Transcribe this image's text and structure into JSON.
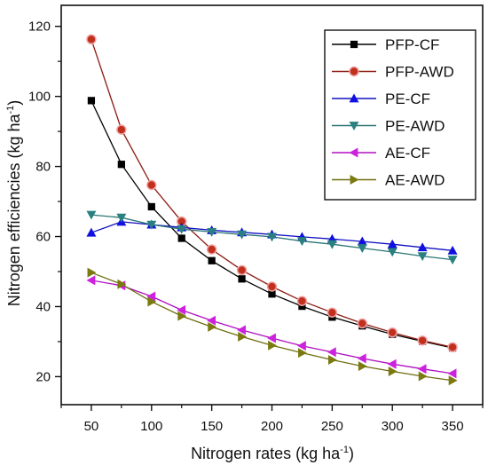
{
  "chart_data": {
    "type": "line",
    "title": "",
    "xlabel": "Nitrogen rates (kg ha",
    "xlabel_sup": "-1",
    "xlabel_suffix": ")",
    "ylabel": "Nitrogen efficiencies (kg ha",
    "ylabel_sup": "-1",
    "ylabel_suffix": ")",
    "xlim": [
      25,
      375
    ],
    "ylim": [
      12,
      126
    ],
    "x_ticks": [
      50,
      100,
      150,
      200,
      250,
      300,
      350
    ],
    "y_ticks": [
      20,
      40,
      60,
      80,
      100,
      120
    ],
    "grid": false,
    "legend_position": "top-right",
    "x": [
      50,
      75,
      100,
      125,
      150,
      175,
      200,
      225,
      250,
      275,
      300,
      325,
      350
    ],
    "series": [
      {
        "name": "PFP-CF",
        "marker": "square",
        "color": "#000000",
        "line_color": "#000000",
        "values": [
          98.8,
          80.6,
          68.5,
          59.5,
          53.1,
          47.9,
          43.6,
          40.1,
          37.0,
          34.5,
          32.1,
          30.1,
          28.2
        ]
      },
      {
        "name": "PFP-AWD",
        "marker": "circle",
        "color": "#c0301d",
        "line_color": "#8b1a10",
        "values": [
          116.3,
          90.5,
          74.7,
          64.3,
          56.3,
          50.4,
          45.7,
          41.6,
          38.3,
          35.2,
          32.6,
          30.3,
          28.4
        ]
      },
      {
        "name": "PE-CF",
        "marker": "triangle-up",
        "color": "#1010e0",
        "line_color": "#1010c0",
        "values": [
          61.1,
          64.2,
          63.4,
          62.6,
          61.8,
          61.2,
          60.6,
          59.9,
          59.3,
          58.6,
          57.8,
          56.9,
          56.0
        ]
      },
      {
        "name": "PE-AWD",
        "marker": "triangle-down",
        "color": "#2a8080",
        "line_color": "#2a7575",
        "values": [
          66.2,
          65.4,
          63.4,
          62.1,
          61.3,
          60.6,
          59.9,
          58.7,
          57.8,
          56.7,
          55.6,
          54.4,
          53.4
        ]
      },
      {
        "name": "AE-CF",
        "marker": "triangle-left",
        "color": "#cc22dd",
        "line_color": "#b010c0",
        "values": [
          47.5,
          46.0,
          42.9,
          39.0,
          36.0,
          33.3,
          31.0,
          28.8,
          27.0,
          25.2,
          23.6,
          22.2,
          20.9
        ]
      },
      {
        "name": "AE-AWD",
        "marker": "triangle-right",
        "color": "#7a7a10",
        "line_color": "#6e6e10",
        "values": [
          49.7,
          46.4,
          41.4,
          37.3,
          34.2,
          31.4,
          28.9,
          26.8,
          24.8,
          23.0,
          21.5,
          20.1,
          18.9
        ]
      }
    ]
  }
}
